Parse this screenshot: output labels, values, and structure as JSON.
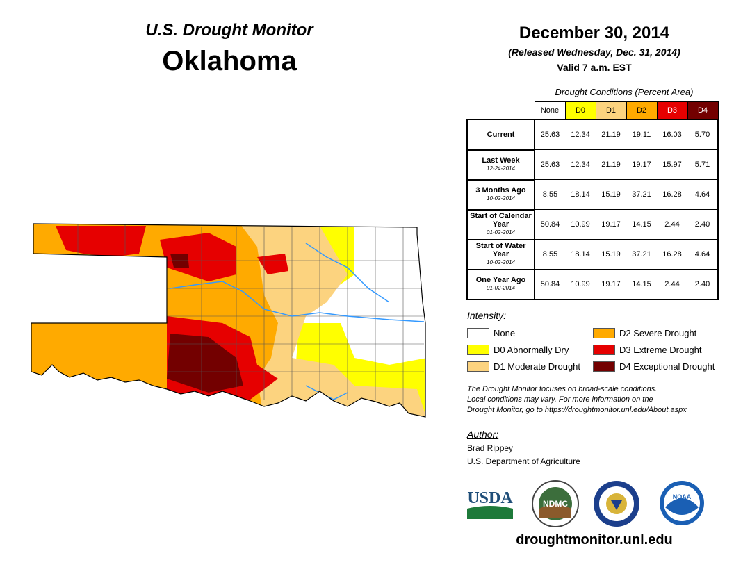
{
  "header": {
    "monitor_title": "U.S. Drought Monitor",
    "state": "Oklahoma"
  },
  "release": {
    "date": "December 30, 2014",
    "released": "(Released Wednesday, Dec. 31, 2014)",
    "valid": "Valid 7 a.m. EST"
  },
  "table": {
    "caption": "Drought Conditions (Percent Area)",
    "columns": [
      "None",
      "D0",
      "D1",
      "D2",
      "D3",
      "D4"
    ],
    "column_colors": [
      "#ffffff",
      "#ffff00",
      "#fcd37f",
      "#ffaa00",
      "#e60000",
      "#730000"
    ],
    "column_text_colors": [
      "#000000",
      "#000000",
      "#000000",
      "#000000",
      "#ffffff",
      "#ffffff"
    ],
    "rows": [
      {
        "label": "Current",
        "sub": "",
        "values": [
          "25.63",
          "12.34",
          "21.19",
          "19.11",
          "16.03",
          "5.70"
        ]
      },
      {
        "label": "Last Week",
        "sub": "12-24-2014",
        "values": [
          "25.63",
          "12.34",
          "21.19",
          "19.17",
          "15.97",
          "5.71"
        ]
      },
      {
        "label": "3 Months Ago",
        "sub": "10-02-2014",
        "values": [
          "8.55",
          "18.14",
          "15.19",
          "37.21",
          "16.28",
          "4.64"
        ]
      },
      {
        "label": "Start of Calendar Year",
        "sub": "01-02-2014",
        "values": [
          "50.84",
          "10.99",
          "19.17",
          "14.15",
          "2.44",
          "2.40"
        ]
      },
      {
        "label": "Start of Water Year",
        "sub": "10-02-2014",
        "values": [
          "8.55",
          "18.14",
          "15.19",
          "37.21",
          "16.28",
          "4.64"
        ]
      },
      {
        "label": "One Year Ago",
        "sub": "01-02-2014",
        "values": [
          "50.84",
          "10.99",
          "19.17",
          "14.15",
          "2.44",
          "2.40"
        ]
      }
    ]
  },
  "legend": {
    "title": "Intensity:",
    "items": [
      {
        "label": "None",
        "color": "#ffffff"
      },
      {
        "label": "D0 Abnormally Dry",
        "color": "#ffff00"
      },
      {
        "label": "D1 Moderate Drought",
        "color": "#fcd37f"
      },
      {
        "label": "D2 Severe Drought",
        "color": "#ffaa00"
      },
      {
        "label": "D3 Extreme Drought",
        "color": "#e60000"
      },
      {
        "label": "D4 Exceptional Drought",
        "color": "#730000"
      }
    ]
  },
  "note": {
    "line1": "The Drought Monitor focuses on broad-scale conditions.",
    "line2": "Local conditions may vary. For more information on the",
    "line3": "Drought Monitor, go to https://droughtmonitor.unl.edu/About.aspx"
  },
  "author": {
    "title": "Author:",
    "name": "Brad Rippey",
    "org": "U.S. Department of Agriculture"
  },
  "logos": {
    "usda": "USDA",
    "ndmc": "NDMC",
    "noaa": "NOAA"
  },
  "footer": {
    "site": "droughtmonitor.unl.edu"
  },
  "colors": {
    "none": "#ffffff",
    "d0": "#ffff00",
    "d1": "#fcd37f",
    "d2": "#ffaa00",
    "d3": "#e60000",
    "d4": "#730000",
    "river": "#3399ff"
  }
}
